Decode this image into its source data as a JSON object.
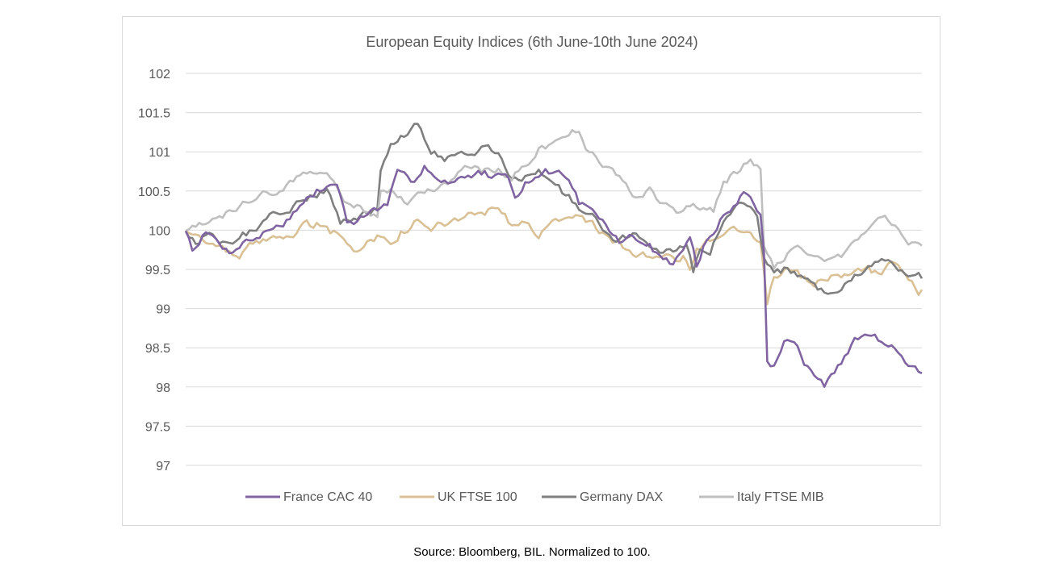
{
  "chart_data": {
    "type": "line",
    "title": "European Equity Indices  (6th June-10th June 2024)",
    "xlabel": "",
    "ylabel": "",
    "ylim": [
      97,
      102
    ],
    "yticks": [
      "102",
      "101.5",
      "101",
      "100.5",
      "100",
      "99.5",
      "99",
      "98.5",
      "98",
      "97.5",
      "97"
    ],
    "grid": true,
    "legend_position": "bottom",
    "x_points": 200,
    "series": [
      {
        "name": "France CAC 40",
        "color": "#8064a2",
        "anchors": [
          [
            0,
            100.0
          ],
          [
            2,
            99.75
          ],
          [
            6,
            99.95
          ],
          [
            9,
            99.85
          ],
          [
            13,
            99.7
          ],
          [
            17,
            99.85
          ],
          [
            21,
            99.9
          ],
          [
            25,
            100.0
          ],
          [
            29,
            100.1
          ],
          [
            33,
            100.25
          ],
          [
            37,
            100.4
          ],
          [
            40,
            100.5
          ],
          [
            45,
            100.6
          ],
          [
            48,
            100.1
          ],
          [
            52,
            100.15
          ],
          [
            56,
            100.25
          ],
          [
            60,
            100.3
          ],
          [
            63,
            100.7
          ],
          [
            67,
            100.6
          ],
          [
            71,
            100.85
          ],
          [
            75,
            100.65
          ],
          [
            79,
            100.6
          ],
          [
            83,
            100.7
          ],
          [
            87,
            100.75
          ],
          [
            91,
            100.7
          ],
          [
            95,
            100.75
          ],
          [
            98,
            100.45
          ],
          [
            101,
            100.6
          ],
          [
            105,
            100.7
          ],
          [
            109,
            100.75
          ],
          [
            113,
            100.7
          ],
          [
            117,
            100.35
          ],
          [
            121,
            100.2
          ],
          [
            125,
            100.05
          ],
          [
            129,
            99.85
          ],
          [
            133,
            99.9
          ],
          [
            137,
            99.85
          ],
          [
            141,
            99.65
          ],
          [
            145,
            99.6
          ],
          [
            148,
            99.75
          ],
          [
            150,
            99.95
          ],
          [
            152,
            99.55
          ],
          [
            154,
            99.8
          ],
          [
            157,
            99.9
          ],
          [
            160,
            100.2
          ],
          [
            164,
            100.4
          ],
          [
            166,
            100.5
          ],
          [
            168,
            100.4
          ],
          [
            171,
            100.2
          ],
          [
            172,
            99.75
          ],
          [
            173,
            98.3
          ],
          [
            175,
            98.3
          ],
          [
            178,
            98.6
          ],
          [
            181,
            98.6
          ],
          [
            184,
            98.3
          ],
          [
            187,
            98.15
          ],
          [
            190,
            98.0
          ],
          [
            193,
            98.2
          ],
          [
            196,
            98.4
          ],
          [
            199,
            98.6
          ],
          [
            203,
            98.7
          ],
          [
            207,
            98.6
          ],
          [
            212,
            98.5
          ],
          [
            216,
            98.3
          ],
          [
            219,
            98.2
          ]
        ]
      },
      {
        "name": "UK FTSE 100",
        "color": "#d9c095",
        "anchors": [
          [
            0,
            100.0
          ],
          [
            4,
            99.9
          ],
          [
            8,
            99.8
          ],
          [
            12,
            99.75
          ],
          [
            16,
            99.7
          ],
          [
            20,
            99.8
          ],
          [
            24,
            99.85
          ],
          [
            28,
            99.9
          ],
          [
            32,
            99.95
          ],
          [
            36,
            100.05
          ],
          [
            40,
            100.1
          ],
          [
            43,
            100.0
          ],
          [
            47,
            99.9
          ],
          [
            50,
            99.75
          ],
          [
            53,
            99.8
          ],
          [
            57,
            99.9
          ],
          [
            61,
            99.85
          ],
          [
            65,
            100.0
          ],
          [
            69,
            100.1
          ],
          [
            73,
            100.0
          ],
          [
            77,
            100.05
          ],
          [
            81,
            100.1
          ],
          [
            85,
            100.15
          ],
          [
            89,
            100.2
          ],
          [
            93,
            100.25
          ],
          [
            97,
            100.05
          ],
          [
            101,
            100.1
          ],
          [
            105,
            99.95
          ],
          [
            109,
            100.1
          ],
          [
            113,
            100.1
          ],
          [
            117,
            100.25
          ],
          [
            121,
            100.05
          ],
          [
            125,
            99.9
          ],
          [
            129,
            99.8
          ],
          [
            133,
            99.7
          ],
          [
            137,
            99.65
          ],
          [
            141,
            99.7
          ],
          [
            145,
            99.6
          ],
          [
            148,
            99.65
          ],
          [
            150,
            99.45
          ],
          [
            152,
            99.7
          ],
          [
            155,
            99.8
          ],
          [
            159,
            99.85
          ],
          [
            163,
            100.05
          ],
          [
            167,
            100.0
          ],
          [
            171,
            99.85
          ],
          [
            173,
            99.1
          ],
          [
            175,
            99.4
          ],
          [
            178,
            99.5
          ],
          [
            182,
            99.45
          ],
          [
            186,
            99.3
          ],
          [
            190,
            99.35
          ],
          [
            194,
            99.4
          ],
          [
            198,
            99.45
          ],
          [
            202,
            99.5
          ],
          [
            206,
            99.45
          ],
          [
            210,
            99.55
          ],
          [
            214,
            99.5
          ],
          [
            218,
            99.25
          ],
          [
            219,
            99.25
          ]
        ]
      },
      {
        "name": "Germany DAX",
        "color": "#7f7f7f",
        "anchors": [
          [
            0,
            100.0
          ],
          [
            3,
            99.85
          ],
          [
            7,
            99.95
          ],
          [
            10,
            99.8
          ],
          [
            14,
            99.85
          ],
          [
            18,
            99.95
          ],
          [
            22,
            100.05
          ],
          [
            26,
            100.2
          ],
          [
            30,
            100.3
          ],
          [
            34,
            100.4
          ],
          [
            38,
            100.5
          ],
          [
            42,
            100.5
          ],
          [
            46,
            100.1
          ],
          [
            50,
            100.1
          ],
          [
            54,
            100.2
          ],
          [
            57,
            100.25
          ],
          [
            58,
            100.8
          ],
          [
            61,
            101.1
          ],
          [
            65,
            101.2
          ],
          [
            69,
            101.35
          ],
          [
            73,
            101.0
          ],
          [
            77,
            100.9
          ],
          [
            81,
            101.0
          ],
          [
            85,
            101.0
          ],
          [
            89,
            101.05
          ],
          [
            93,
            100.95
          ],
          [
            97,
            100.6
          ],
          [
            101,
            100.65
          ],
          [
            105,
            100.7
          ],
          [
            109,
            100.65
          ],
          [
            113,
            100.45
          ],
          [
            117,
            100.3
          ],
          [
            121,
            100.15
          ],
          [
            125,
            100.0
          ],
          [
            129,
            99.85
          ],
          [
            133,
            99.95
          ],
          [
            137,
            99.8
          ],
          [
            141,
            99.7
          ],
          [
            145,
            99.7
          ],
          [
            149,
            99.85
          ],
          [
            151,
            99.5
          ],
          [
            153,
            99.8
          ],
          [
            156,
            99.75
          ],
          [
            160,
            100.15
          ],
          [
            164,
            100.3
          ],
          [
            168,
            100.25
          ],
          [
            170,
            100.15
          ],
          [
            172,
            99.6
          ],
          [
            175,
            99.45
          ],
          [
            179,
            99.5
          ],
          [
            183,
            99.4
          ],
          [
            187,
            99.25
          ],
          [
            191,
            99.15
          ],
          [
            195,
            99.3
          ],
          [
            199,
            99.45
          ],
          [
            203,
            99.55
          ],
          [
            207,
            99.65
          ],
          [
            211,
            99.6
          ],
          [
            214,
            99.5
          ],
          [
            217,
            99.4
          ],
          [
            219,
            99.4
          ]
        ]
      },
      {
        "name": "Italy FTSE MIB",
        "color": "#bfbfbf",
        "anchors": [
          [
            0,
            100.0
          ],
          [
            3,
            100.0
          ],
          [
            7,
            100.1
          ],
          [
            11,
            100.1
          ],
          [
            15,
            100.25
          ],
          [
            19,
            100.35
          ],
          [
            23,
            100.45
          ],
          [
            27,
            100.55
          ],
          [
            31,
            100.6
          ],
          [
            35,
            100.7
          ],
          [
            39,
            100.8
          ],
          [
            43,
            100.7
          ],
          [
            47,
            100.35
          ],
          [
            51,
            100.3
          ],
          [
            55,
            100.25
          ],
          [
            57,
            100.2
          ],
          [
            58,
            100.55
          ],
          [
            62,
            100.5
          ],
          [
            66,
            100.3
          ],
          [
            70,
            100.5
          ],
          [
            74,
            100.55
          ],
          [
            78,
            100.65
          ],
          [
            82,
            100.75
          ],
          [
            86,
            100.8
          ],
          [
            90,
            100.75
          ],
          [
            94,
            100.75
          ],
          [
            97,
            100.65
          ],
          [
            101,
            100.8
          ],
          [
            105,
            101.0
          ],
          [
            109,
            101.1
          ],
          [
            113,
            101.2
          ],
          [
            116,
            101.25
          ],
          [
            117,
            101.3
          ],
          [
            119,
            101.0
          ],
          [
            123,
            100.9
          ],
          [
            127,
            100.75
          ],
          [
            131,
            100.55
          ],
          [
            135,
            100.4
          ],
          [
            138,
            100.55
          ],
          [
            142,
            100.35
          ],
          [
            146,
            100.25
          ],
          [
            150,
            100.35
          ],
          [
            154,
            100.3
          ],
          [
            157,
            100.25
          ],
          [
            160,
            100.6
          ],
          [
            164,
            100.75
          ],
          [
            168,
            100.85
          ],
          [
            171,
            100.75
          ],
          [
            172,
            99.8
          ],
          [
            175,
            99.5
          ],
          [
            179,
            99.7
          ],
          [
            183,
            99.75
          ],
          [
            187,
            99.7
          ],
          [
            191,
            99.65
          ],
          [
            195,
            99.7
          ],
          [
            199,
            99.85
          ],
          [
            203,
            100.0
          ],
          [
            207,
            100.2
          ],
          [
            211,
            100.05
          ],
          [
            215,
            99.85
          ],
          [
            219,
            99.8
          ]
        ]
      }
    ]
  },
  "source_note": "Source: Bloomberg, BIL. Normalized to 100."
}
